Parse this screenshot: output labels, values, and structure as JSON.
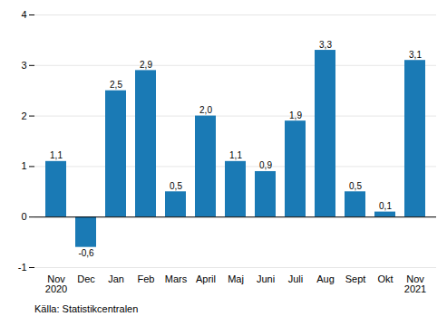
{
  "chart_data": {
    "type": "bar",
    "categories": [
      "Nov\n2020",
      "Dec",
      "Jan",
      "Feb",
      "Mars",
      "April",
      "Maj",
      "Juni",
      "Juli",
      "Aug",
      "Sept",
      "Okt",
      "Nov\n2021"
    ],
    "values": [
      1.1,
      -0.6,
      2.5,
      2.9,
      0.5,
      2.0,
      1.1,
      0.9,
      1.9,
      3.3,
      0.5,
      0.1,
      3.1
    ],
    "value_labels": [
      "1,1",
      "-0,6",
      "2,5",
      "2,9",
      "0,5",
      "2,0",
      "1,1",
      "0,9",
      "1,9",
      "3,3",
      "0,5",
      "0,1",
      "3,1"
    ],
    "data_labels": true,
    "color": "#1a7ab5",
    "ylim": [
      -1.0,
      4.0
    ],
    "yticks": [
      -1,
      0,
      1,
      2,
      3,
      4
    ],
    "grid": true,
    "caption": "Källa: Statistikcentralen"
  }
}
